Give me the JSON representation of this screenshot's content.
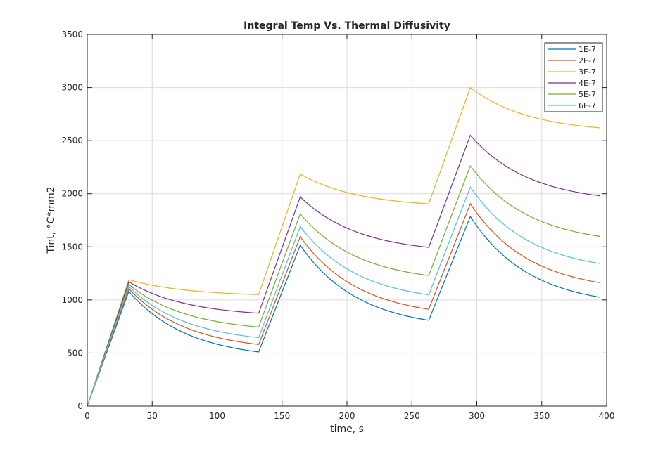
{
  "chart_data": {
    "type": "line",
    "title": "Integral Temp Vs. Thermal Diffusivity",
    "xlabel": "time, s",
    "ylabel": "Tint, °C*mm2",
    "xlim": [
      0,
      400
    ],
    "ylim": [
      0,
      3500
    ],
    "xticks": [
      0,
      50,
      100,
      150,
      200,
      250,
      300,
      350,
      400
    ],
    "yticks": [
      0,
      500,
      1000,
      1500,
      2000,
      2500,
      3000,
      3500
    ],
    "grid": true,
    "legend_position": "top-right",
    "series": [
      {
        "name": "1E-7",
        "color": "#0072BD",
        "x": [
          0,
          32,
          132,
          164,
          263,
          295,
          395
        ],
        "y": [
          0,
          1080,
          510,
          1515,
          808,
          1785,
          1025
        ]
      },
      {
        "name": "2E-7",
        "color": "#D95319",
        "x": [
          0,
          32,
          132,
          164,
          263,
          295,
          395
        ],
        "y": [
          0,
          1105,
          580,
          1595,
          912,
          1905,
          1162
        ]
      },
      {
        "name": "3E-7",
        "color": "#EDB120",
        "x": [
          0,
          32,
          132,
          164,
          263,
          295,
          395
        ],
        "y": [
          0,
          1190,
          1050,
          2185,
          1905,
          3000,
          2620
        ]
      },
      {
        "name": "4E-7",
        "color": "#7E2F8E",
        "x": [
          0,
          32,
          132,
          164,
          263,
          295,
          395
        ],
        "y": [
          0,
          1170,
          875,
          1970,
          1495,
          2550,
          1980
        ]
      },
      {
        "name": "5E-7",
        "color": "#77AC30",
        "x": [
          0,
          32,
          132,
          164,
          263,
          295,
          395
        ],
        "y": [
          0,
          1145,
          745,
          1810,
          1230,
          2262,
          1598
        ]
      },
      {
        "name": "6E-7",
        "color": "#4DBEEE",
        "x": [
          0,
          32,
          132,
          164,
          263,
          295,
          395
        ],
        "y": [
          0,
          1125,
          645,
          1690,
          1048,
          2062,
          1342
        ]
      }
    ]
  }
}
